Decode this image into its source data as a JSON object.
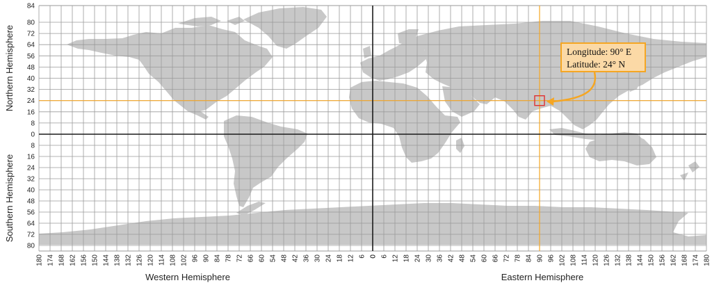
{
  "map": {
    "colors": {
      "land": "#c8c8c8",
      "grid": "#9a9a9a",
      "axis": "#1a1a1a",
      "highlight": "#f5a623",
      "marker": "#e03030",
      "callout_bg": "#fbd9a6"
    },
    "lat_labels_north": [
      "84",
      "80",
      "72",
      "64",
      "56",
      "48",
      "40",
      "32",
      "24",
      "16",
      "8",
      "0"
    ],
    "lat_labels_south": [
      "8",
      "16",
      "24",
      "32",
      "40",
      "48",
      "56",
      "64",
      "72",
      "80"
    ],
    "lon_labels_west": [
      "180",
      "174",
      "168",
      "162",
      "156",
      "150",
      "144",
      "138",
      "132",
      "126",
      "120",
      "114",
      "108",
      "102",
      "96",
      "90",
      "84",
      "78",
      "72",
      "66",
      "60",
      "54",
      "48",
      "42",
      "36",
      "30",
      "24",
      "18",
      "12",
      "6",
      "0"
    ],
    "lon_labels_east": [
      "0",
      "6",
      "12",
      "18",
      "24",
      "30",
      "36",
      "42",
      "48",
      "54",
      "60",
      "66",
      "72",
      "78",
      "84",
      "90",
      "96",
      "102",
      "108",
      "114",
      "120",
      "126",
      "132",
      "138",
      "144",
      "150",
      "156",
      "162",
      "168",
      "174",
      "180"
    ],
    "northern_hemisphere_label": "Northern Hemisphere",
    "southern_hemisphere_label": "Southern Hemisphere",
    "western_hemisphere_label": "Western Hemisphere",
    "eastern_hemisphere_label": "Eastern Hemisphere",
    "highlight_point": {
      "lon": 90,
      "lat": 24
    },
    "callout": {
      "longitude_text": "Longitude: 90° E",
      "latitude_text": "Latitude: 24° N"
    }
  }
}
